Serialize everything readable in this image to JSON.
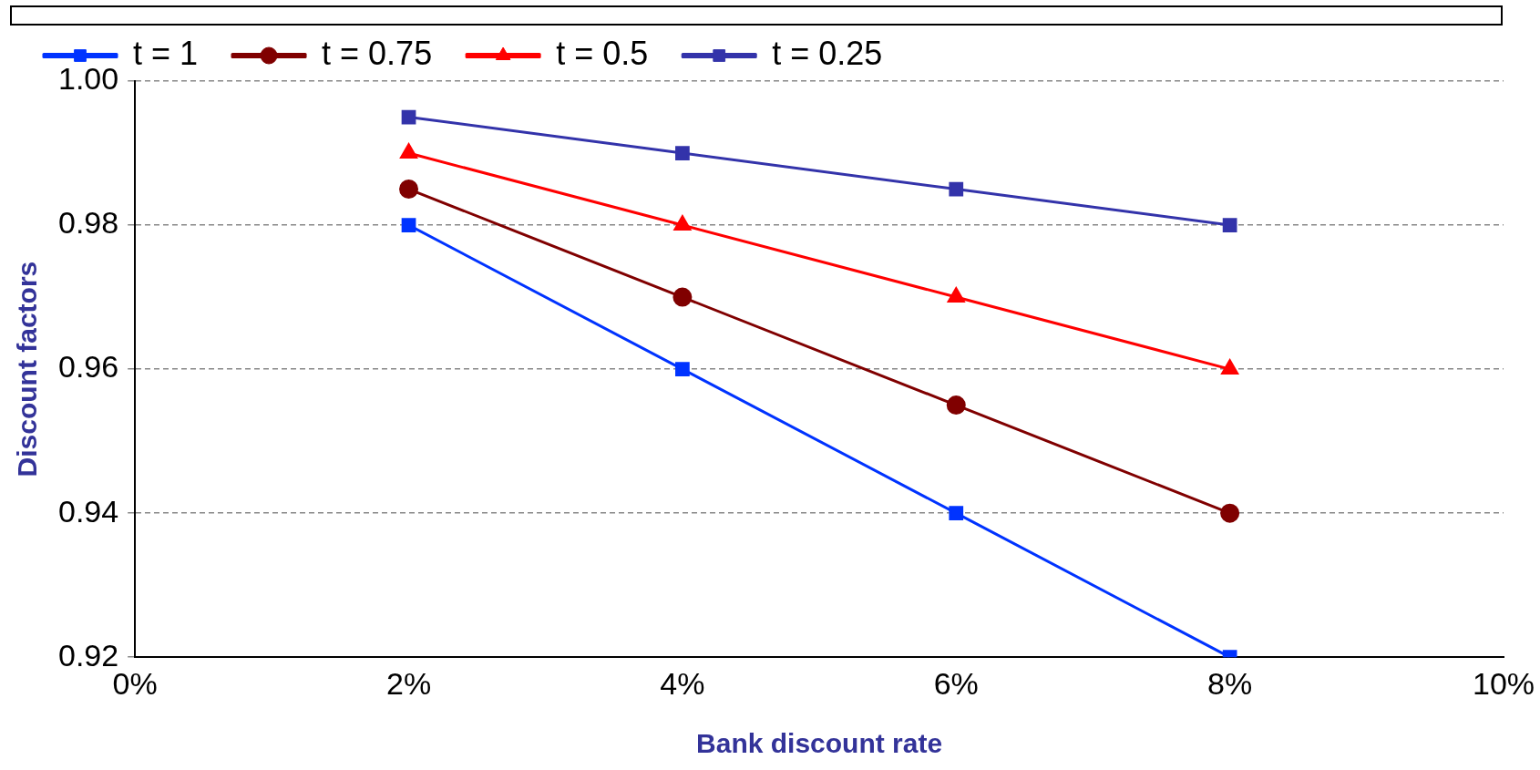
{
  "chart_data": {
    "type": "line",
    "xlabel": "Bank discount rate",
    "ylabel": "Discount factors",
    "x": [
      2,
      4,
      6,
      8
    ],
    "series": [
      {
        "name": "t = 1",
        "color": "#0033ff",
        "marker": "square",
        "values": [
          0.98,
          0.96,
          0.94,
          0.92
        ]
      },
      {
        "name": "t = 0.75",
        "color": "#800000",
        "marker": "circle",
        "values": [
          0.985,
          0.97,
          0.955,
          0.94
        ]
      },
      {
        "name": "t = 0.5",
        "color": "#ff0000",
        "marker": "triangle",
        "values": [
          0.99,
          0.98,
          0.97,
          0.96
        ]
      },
      {
        "name": "t = 0.25",
        "color": "#3333aa",
        "marker": "square",
        "values": [
          0.995,
          0.99,
          0.985,
          0.98
        ]
      }
    ],
    "xlim": [
      0,
      10
    ],
    "xticks": [
      {
        "value": 0,
        "label": "0%"
      },
      {
        "value": 2,
        "label": "2%"
      },
      {
        "value": 4,
        "label": "4%"
      },
      {
        "value": 6,
        "label": "6%"
      },
      {
        "value": 8,
        "label": "8%"
      },
      {
        "value": 10,
        "label": "10%"
      }
    ],
    "ylim": [
      0.92,
      1
    ],
    "yticks": [
      0.92,
      0.94,
      0.96,
      0.98,
      {
        "value": 1,
        "label": "1.00"
      }
    ],
    "grid": "y",
    "legend": "top",
    "line_style": "solid"
  }
}
